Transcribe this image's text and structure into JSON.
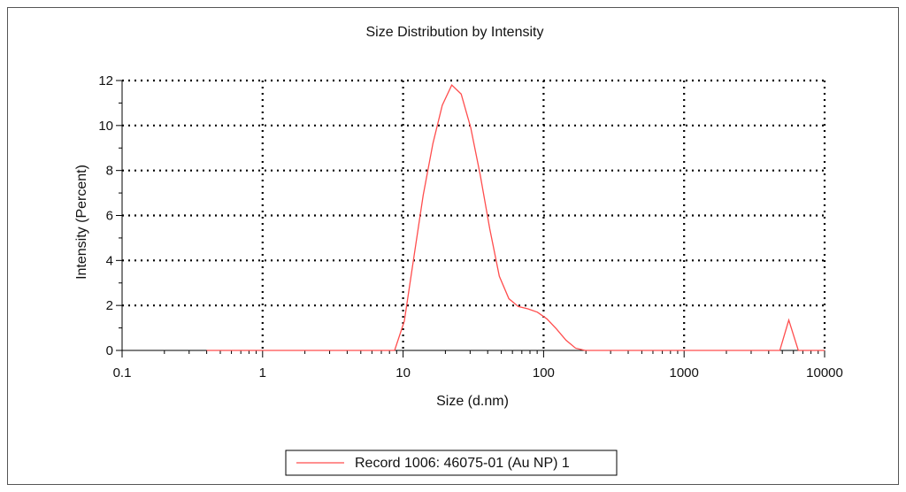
{
  "chart_data": {
    "type": "line",
    "title": "Size Distribution by Intensity",
    "xlabel": "Size (d.nm)",
    "ylabel": "Intensity (Percent)",
    "xscale": "log",
    "xlim": [
      0.1,
      10000
    ],
    "ylim": [
      0,
      12
    ],
    "xticks": [
      "0.1",
      "1",
      "10",
      "100",
      "1000",
      "10000"
    ],
    "yticks": [
      "0",
      "2",
      "4",
      "6",
      "8",
      "10",
      "12"
    ],
    "grid": true,
    "legend_position": "bottom-center",
    "series": [
      {
        "name": "Record 1006: 46075-01 (Au NP) 1",
        "color": "#ff4d4d",
        "x": [
          0.4,
          1,
          2,
          5,
          8.7,
          10.2,
          11.9,
          13.9,
          16.3,
          19,
          22.2,
          25.9,
          30.3,
          35.4,
          41.4,
          48.4,
          56.6,
          66.1,
          77.3,
          90.4,
          105.7,
          123.6,
          144.5,
          168.9,
          197.5,
          230.9,
          300,
          1000,
          3000,
          4800,
          5560,
          6500,
          10000
        ],
        "y": [
          0,
          0,
          0,
          0,
          0,
          1.3,
          4.1,
          6.9,
          9.2,
          10.9,
          11.8,
          11.4,
          9.9,
          7.8,
          5.4,
          3.3,
          2.3,
          1.95,
          1.85,
          1.7,
          1.4,
          0.95,
          0.45,
          0.1,
          0,
          0,
          0,
          0,
          0,
          0,
          1.35,
          0,
          0
        ]
      }
    ]
  }
}
